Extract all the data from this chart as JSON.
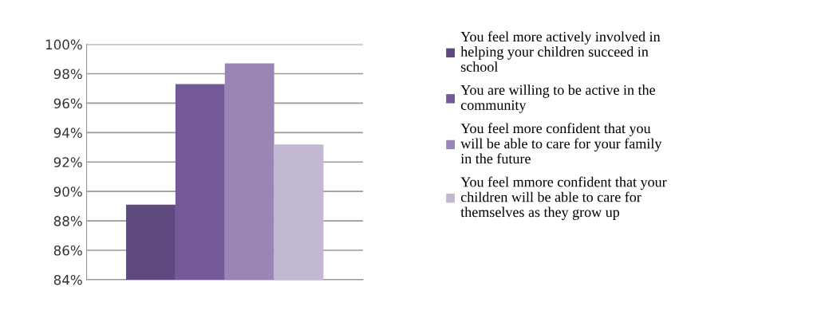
{
  "chart_data": {
    "type": "bar",
    "categories": [
      null
    ],
    "series": [
      {
        "name": "You feel more actively involved in\nhelping your children succeed in\nschool",
        "color": "#5e4a7e",
        "values": [
          89.1
        ]
      },
      {
        "name": "You are willing to be active in the\ncommunity",
        "color": "#735a96",
        "values": [
          97.3
        ]
      },
      {
        "name": "You feel more confident that you\nwill be able to care for your family\nin the future",
        "color": "#9b85b5",
        "values": [
          98.7
        ]
      },
      {
        "name": "You feel mmore confident that your\nchildren will be able to care for\nthemselves as they grow up",
        "color": "#c3b8d4",
        "values": [
          93.2
        ]
      }
    ],
    "ylim": [
      84,
      100
    ],
    "yticks": [
      {
        "value": 84,
        "label": "84%"
      },
      {
        "value": 86,
        "label": "86%"
      },
      {
        "value": 88,
        "label": "88%"
      },
      {
        "value": 90,
        "label": "90%"
      },
      {
        "value": 92,
        "label": "92%"
      },
      {
        "value": 94,
        "label": "94%"
      },
      {
        "value": 96,
        "label": "96%"
      },
      {
        "value": 98,
        "label": "98%"
      },
      {
        "value": 100,
        "label": "100%"
      }
    ],
    "grid": "y",
    "legend": "right"
  }
}
